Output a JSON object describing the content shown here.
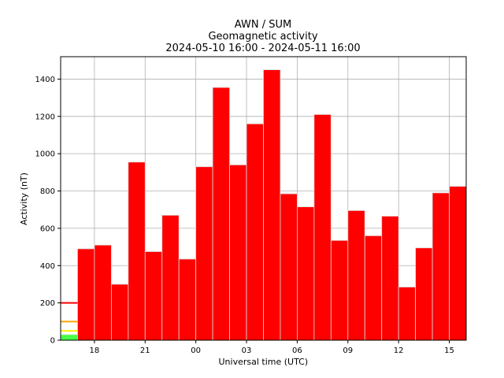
{
  "chart_data": {
    "type": "bar",
    "title_lines": [
      "AWN / SUM",
      "Geomagnetic activity",
      "2024-05-10 16:00 - 2024-05-11 16:00"
    ],
    "xlabel": "Universal time (UTC)",
    "ylabel": "Activity (nT)",
    "ylim": [
      0,
      1520
    ],
    "yticks": [
      0,
      200,
      400,
      600,
      800,
      1000,
      1200,
      1400
    ],
    "xlim": [
      16,
      40
    ],
    "xticks": [
      {
        "hour": 18,
        "label": "18"
      },
      {
        "hour": 21,
        "label": "21"
      },
      {
        "hour": 24,
        "label": "00"
      },
      {
        "hour": 27,
        "label": "03"
      },
      {
        "hour": 30,
        "label": "06"
      },
      {
        "hour": 33,
        "label": "09"
      },
      {
        "hour": 36,
        "label": "12"
      },
      {
        "hour": 39,
        "label": "15"
      }
    ],
    "grid": true,
    "bar_color": "#ff0000",
    "bar_edge_color": "#d9d9d9",
    "bars": [
      {
        "hour_start": 16,
        "value": 30,
        "color": "#44ff44"
      },
      {
        "hour_start": 17,
        "value": 490
      },
      {
        "hour_start": 18,
        "value": 510
      },
      {
        "hour_start": 19,
        "value": 300
      },
      {
        "hour_start": 20,
        "value": 955
      },
      {
        "hour_start": 21,
        "value": 475
      },
      {
        "hour_start": 22,
        "value": 670
      },
      {
        "hour_start": 23,
        "value": 435
      },
      {
        "hour_start": 24,
        "value": 930
      },
      {
        "hour_start": 25,
        "value": 1355
      },
      {
        "hour_start": 26,
        "value": 940
      },
      {
        "hour_start": 27,
        "value": 1160
      },
      {
        "hour_start": 28,
        "value": 1450
      },
      {
        "hour_start": 29,
        "value": 785
      },
      {
        "hour_start": 30,
        "value": 715
      },
      {
        "hour_start": 31,
        "value": 1210
      },
      {
        "hour_start": 32,
        "value": 535
      },
      {
        "hour_start": 33,
        "value": 695
      },
      {
        "hour_start": 34,
        "value": 560
      },
      {
        "hour_start": 35,
        "value": 665
      },
      {
        "hour_start": 36,
        "value": 285
      },
      {
        "hour_start": 37,
        "value": 495
      },
      {
        "hour_start": 38,
        "value": 790
      },
      {
        "hour_start": 39,
        "value": 825
      }
    ],
    "threshold_markers": [
      {
        "value": 50,
        "color": "#ffee00"
      },
      {
        "value": 100,
        "color": "#ffa500"
      },
      {
        "value": 200,
        "color": "#ff0000"
      }
    ]
  }
}
